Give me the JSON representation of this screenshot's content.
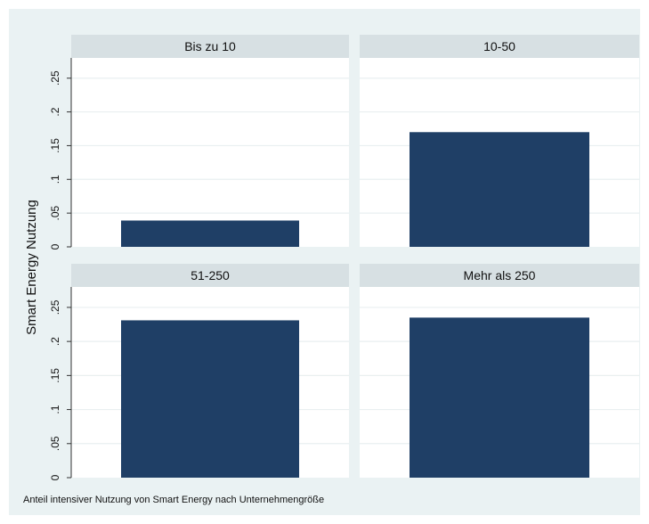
{
  "chart_data": {
    "type": "bar",
    "ylabel": "Smart Energy Nutzung",
    "note": "Anteil intensiver Nutzung von Smart Energy nach Unternehmengröße",
    "ylim": [
      0,
      0.28
    ],
    "yticks": [
      0,
      0.05,
      0.1,
      0.15,
      0.2,
      0.25
    ],
    "ytick_labels": [
      "0",
      ".05",
      ".1",
      ".15",
      ".2",
      ".25"
    ],
    "grid": true,
    "panels": [
      {
        "title": "Bis zu 10",
        "value": 0.039
      },
      {
        "title": "10-50",
        "value": 0.17
      },
      {
        "title": "51-250",
        "value": 0.231
      },
      {
        "title": "Mehr als 250",
        "value": 0.235
      }
    ],
    "colors": {
      "bar": "#1f3f66",
      "background": "#eaf2f3",
      "panel_header": "#d7e0e3",
      "plot_area": "#ffffff",
      "grid": "#e9eff0"
    }
  }
}
